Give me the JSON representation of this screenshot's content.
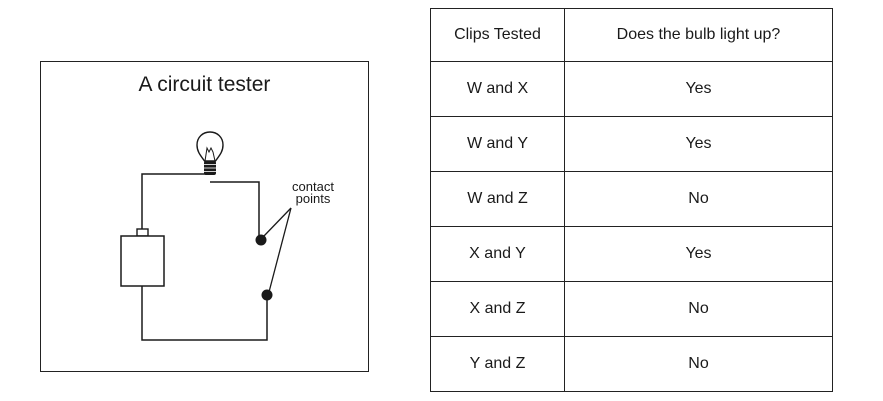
{
  "diagram": {
    "title": "A circuit tester",
    "contact_label_line1": "contact",
    "contact_label_line2": "points"
  },
  "table": {
    "headers": [
      "Clips Tested",
      "Does the bulb light up?"
    ],
    "rows": [
      {
        "clips": "W and X",
        "result": "Yes"
      },
      {
        "clips": "W and Y",
        "result": "Yes"
      },
      {
        "clips": "W and Z",
        "result": "No"
      },
      {
        "clips": "X and Y",
        "result": "Yes"
      },
      {
        "clips": "X and Z",
        "result": "No"
      },
      {
        "clips": "Y and Z",
        "result": "No"
      }
    ]
  }
}
